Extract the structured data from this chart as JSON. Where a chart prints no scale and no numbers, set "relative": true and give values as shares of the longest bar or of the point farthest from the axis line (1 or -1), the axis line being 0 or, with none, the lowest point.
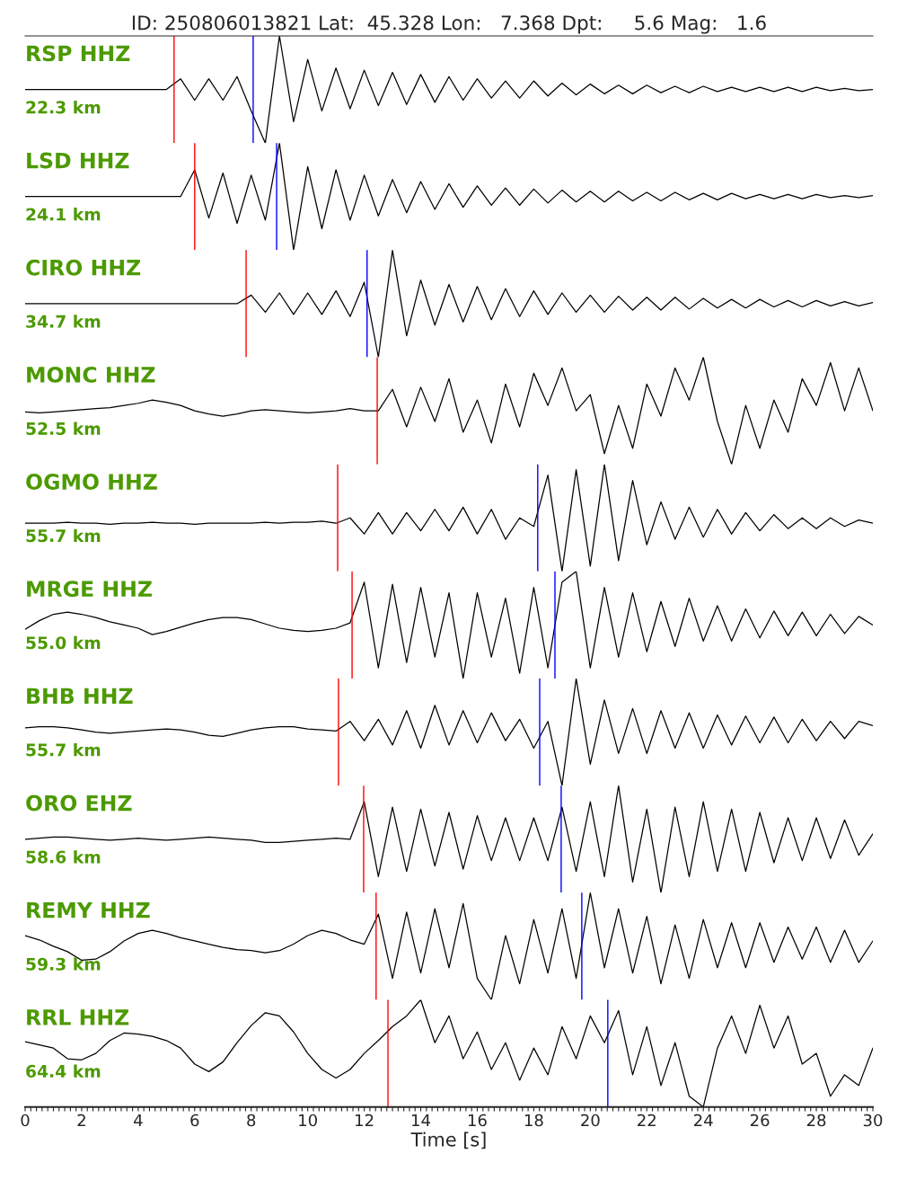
{
  "chart_data": [
    {
      "type": "line",
      "title": "RSP HHZ",
      "subtitle": "22.3 km",
      "annotations": [
        "ID: 250806013821 Lat:  45.328 Lon:   7.368 Dpt:     5.6 Mag:   1.6"
      ],
      "relative": true,
      "xlim": [
        0,
        30
      ],
      "tick_labels": false,
      "x": [
        0,
        0.5,
        1,
        1.5,
        2,
        2.5,
        3,
        3.5,
        4,
        4.5,
        5,
        5.5,
        6,
        6.5,
        7,
        7.5,
        8,
        8.5,
        9,
        9.5,
        10,
        10.5,
        11,
        11.5,
        12,
        12.5,
        13,
        13.5,
        14,
        14.5,
        15,
        15.5,
        16,
        16.5,
        17,
        17.5,
        18,
        18.5,
        19,
        19.5,
        20,
        20.5,
        21,
        21.5,
        22,
        22.5,
        23,
        23.5,
        24,
        24.5,
        25,
        25.5,
        26,
        26.5,
        27,
        27.5,
        28,
        28.5,
        29,
        29.5,
        30
      ],
      "series": [
        {
          "color": "#000000",
          "values": [
            0.5,
            0.5,
            0.5,
            0.5,
            0.5,
            0.5,
            0.5,
            0.5,
            0.5,
            0.5,
            0.5,
            0.6,
            0.4,
            0.6,
            0.4,
            0.62,
            0.3,
            0,
            1,
            0.2,
            0.78,
            0.3,
            0.7,
            0.32,
            0.68,
            0.35,
            0.66,
            0.36,
            0.64,
            0.38,
            0.62,
            0.4,
            0.6,
            0.42,
            0.58,
            0.42,
            0.58,
            0.44,
            0.56,
            0.45,
            0.55,
            0.46,
            0.54,
            0.46,
            0.54,
            0.47,
            0.53,
            0.47,
            0.53,
            0.48,
            0.52,
            0.48,
            0.52,
            0.48,
            0.52,
            0.48,
            0.52,
            0.49,
            0.51,
            0.49,
            0.5
          ]
        }
      ],
      "ref_lines": [
        {
          "axis": "x",
          "value": 5.27,
          "color": "#ff0000"
        },
        {
          "axis": "x",
          "value": 8.07,
          "color": "#0000ff"
        }
      ]
    },
    {
      "type": "line",
      "title": "LSD HHZ",
      "subtitle": "24.1 km",
      "relative": true,
      "xlim": [
        0,
        30
      ],
      "tick_labels": false,
      "x": [
        0,
        0.5,
        1,
        1.5,
        2,
        2.5,
        3,
        3.5,
        4,
        4.5,
        5,
        5.5,
        6,
        6.5,
        7,
        7.5,
        8,
        8.5,
        9,
        9.5,
        10,
        10.5,
        11,
        11.5,
        12,
        12.5,
        13,
        13.5,
        14,
        14.5,
        15,
        15.5,
        16,
        16.5,
        17,
        17.5,
        18,
        18.5,
        19,
        19.5,
        20,
        20.5,
        21,
        21.5,
        22,
        22.5,
        23,
        23.5,
        24,
        24.5,
        25,
        25.5,
        26,
        26.5,
        27,
        27.5,
        28,
        28.5,
        29,
        29.5,
        30
      ],
      "series": [
        {
          "color": "#000000",
          "values": [
            0.5,
            0.5,
            0.5,
            0.5,
            0.5,
            0.5,
            0.5,
            0.5,
            0.5,
            0.5,
            0.5,
            0.5,
            0.75,
            0.3,
            0.72,
            0.25,
            0.7,
            0.28,
            1,
            0,
            0.78,
            0.2,
            0.75,
            0.28,
            0.7,
            0.32,
            0.66,
            0.35,
            0.64,
            0.38,
            0.62,
            0.4,
            0.6,
            0.42,
            0.58,
            0.42,
            0.57,
            0.44,
            0.56,
            0.45,
            0.55,
            0.45,
            0.55,
            0.46,
            0.54,
            0.46,
            0.54,
            0.47,
            0.53,
            0.47,
            0.53,
            0.48,
            0.52,
            0.48,
            0.52,
            0.48,
            0.52,
            0.49,
            0.51,
            0.49,
            0.51
          ]
        }
      ],
      "ref_lines": [
        {
          "axis": "x",
          "value": 6.0,
          "color": "#ff0000"
        },
        {
          "axis": "x",
          "value": 8.9,
          "color": "#0000ff"
        }
      ]
    },
    {
      "type": "line",
      "title": "CIRO HHZ",
      "subtitle": "34.7 km",
      "relative": true,
      "xlim": [
        0,
        30
      ],
      "tick_labels": false,
      "x": [
        0,
        0.5,
        1,
        1.5,
        2,
        2.5,
        3,
        3.5,
        4,
        4.5,
        5,
        5.5,
        6,
        6.5,
        7,
        7.5,
        8,
        8.5,
        9,
        9.5,
        10,
        10.5,
        11,
        11.5,
        12,
        12.5,
        13,
        13.5,
        14,
        14.5,
        15,
        15.5,
        16,
        16.5,
        17,
        17.5,
        18,
        18.5,
        19,
        19.5,
        20,
        20.5,
        21,
        21.5,
        22,
        22.5,
        23,
        23.5,
        24,
        24.5,
        25,
        25.5,
        26,
        26.5,
        27,
        27.5,
        28,
        28.5,
        29,
        29.5,
        30
      ],
      "series": [
        {
          "color": "#000000",
          "values": [
            0.5,
            0.5,
            0.5,
            0.5,
            0.5,
            0.5,
            0.5,
            0.5,
            0.5,
            0.5,
            0.5,
            0.5,
            0.5,
            0.5,
            0.5,
            0.5,
            0.58,
            0.42,
            0.6,
            0.4,
            0.6,
            0.4,
            0.62,
            0.38,
            0.7,
            0,
            1,
            0.2,
            0.72,
            0.3,
            0.68,
            0.33,
            0.66,
            0.35,
            0.64,
            0.38,
            0.62,
            0.4,
            0.6,
            0.42,
            0.58,
            0.42,
            0.57,
            0.44,
            0.56,
            0.44,
            0.56,
            0.45,
            0.55,
            0.46,
            0.54,
            0.46,
            0.54,
            0.47,
            0.53,
            0.47,
            0.53,
            0.48,
            0.52,
            0.48,
            0.51
          ]
        }
      ],
      "ref_lines": [
        {
          "axis": "x",
          "value": 7.82,
          "color": "#ff0000"
        },
        {
          "axis": "x",
          "value": 12.1,
          "color": "#0000ff"
        }
      ]
    },
    {
      "type": "line",
      "title": "MONC HHZ",
      "subtitle": "52.5 km",
      "relative": true,
      "xlim": [
        0,
        30
      ],
      "tick_labels": false,
      "x": [
        0,
        0.5,
        1,
        1.5,
        2,
        2.5,
        3,
        3.5,
        4,
        4.5,
        5,
        5.5,
        6,
        6.5,
        7,
        7.5,
        8,
        8.5,
        9,
        9.5,
        10,
        10.5,
        11,
        11.5,
        12,
        12.5,
        13,
        13.5,
        14,
        14.5,
        15,
        15.5,
        16,
        16.5,
        17,
        17.5,
        18,
        18.5,
        19,
        19.5,
        20,
        20.5,
        21,
        21.5,
        22,
        22.5,
        23,
        23.5,
        24,
        24.5,
        25,
        25.5,
        26,
        26.5,
        27,
        27.5,
        28,
        28.5,
        29,
        29.5,
        30
      ],
      "series": [
        {
          "color": "#000000",
          "values": [
            0.49,
            0.48,
            0.49,
            0.5,
            0.51,
            0.52,
            0.53,
            0.55,
            0.57,
            0.6,
            0.58,
            0.55,
            0.5,
            0.47,
            0.45,
            0.47,
            0.5,
            0.51,
            0.5,
            0.49,
            0.48,
            0.49,
            0.5,
            0.52,
            0.5,
            0.5,
            0.7,
            0.35,
            0.72,
            0.4,
            0.8,
            0.3,
            0.6,
            0.2,
            0.75,
            0.35,
            0.85,
            0.55,
            0.9,
            0.5,
            0.65,
            0.1,
            0.55,
            0.15,
            0.75,
            0.45,
            0.9,
            0.6,
            1,
            0.4,
            0,
            0.55,
            0.15,
            0.6,
            0.3,
            0.8,
            0.55,
            0.95,
            0.5,
            0.9,
            0.5
          ]
        }
      ],
      "ref_lines": [
        {
          "axis": "x",
          "value": 12.46,
          "color": "#ff0000"
        }
      ]
    },
    {
      "type": "line",
      "title": "OGMO HHZ",
      "subtitle": "55.7 km",
      "relative": true,
      "xlim": [
        0,
        30
      ],
      "tick_labels": false,
      "x": [
        0,
        0.5,
        1,
        1.5,
        2,
        2.5,
        3,
        3.5,
        4,
        4.5,
        5,
        5.5,
        6,
        6.5,
        7,
        7.5,
        8,
        8.5,
        9,
        9.5,
        10,
        10.5,
        11,
        11.5,
        12,
        12.5,
        13,
        13.5,
        14,
        14.5,
        15,
        15.5,
        16,
        16.5,
        17,
        17.5,
        18,
        18.5,
        19,
        19.5,
        20,
        20.5,
        21,
        21.5,
        22,
        22.5,
        23,
        23.5,
        24,
        24.5,
        25,
        25.5,
        26,
        26.5,
        27,
        27.5,
        28,
        28.5,
        29,
        29.5,
        30
      ],
      "series": [
        {
          "color": "#000000",
          "values": [
            0.45,
            0.45,
            0.45,
            0.46,
            0.45,
            0.45,
            0.44,
            0.45,
            0.45,
            0.46,
            0.45,
            0.45,
            0.44,
            0.45,
            0.45,
            0.45,
            0.45,
            0.46,
            0.45,
            0.46,
            0.46,
            0.47,
            0.45,
            0.5,
            0.35,
            0.55,
            0.35,
            0.55,
            0.38,
            0.58,
            0.38,
            0.6,
            0.35,
            0.58,
            0.3,
            0.5,
            0.42,
            0.9,
            0,
            0.95,
            0.05,
            1,
            0.1,
            0.85,
            0.25,
            0.65,
            0.3,
            0.6,
            0.32,
            0.58,
            0.35,
            0.55,
            0.38,
            0.53,
            0.4,
            0.5,
            0.4,
            0.5,
            0.42,
            0.48,
            0.45
          ]
        }
      ],
      "ref_lines": [
        {
          "axis": "x",
          "value": 11.06,
          "color": "#ff0000"
        },
        {
          "axis": "x",
          "value": 18.14,
          "color": "#0000ff"
        }
      ]
    },
    {
      "type": "line",
      "title": "MRGE HHZ",
      "subtitle": "55.0 km",
      "relative": true,
      "xlim": [
        0,
        30
      ],
      "tick_labels": false,
      "x": [
        0,
        0.5,
        1,
        1.5,
        2,
        2.5,
        3,
        3.5,
        4,
        4.5,
        5,
        5.5,
        6,
        6.5,
        7,
        7.5,
        8,
        8.5,
        9,
        9.5,
        10,
        10.5,
        11,
        11.5,
        12,
        12.5,
        13,
        13.5,
        14,
        14.5,
        15,
        15.5,
        16,
        16.5,
        17,
        17.5,
        18,
        18.5,
        19,
        19.5,
        20,
        20.5,
        21,
        21.5,
        22,
        22.5,
        23,
        23.5,
        24,
        24.5,
        25,
        25.5,
        26,
        26.5,
        27,
        27.5,
        28,
        28.5,
        29,
        29.5,
        30
      ],
      "series": [
        {
          "color": "#000000",
          "values": [
            0.46,
            0.54,
            0.6,
            0.62,
            0.6,
            0.57,
            0.53,
            0.5,
            0.47,
            0.41,
            0.44,
            0.48,
            0.52,
            0.55,
            0.57,
            0.57,
            0.55,
            0.51,
            0.47,
            0.45,
            0.44,
            0.45,
            0.47,
            0.52,
            0.9,
            0.1,
            0.88,
            0.15,
            0.85,
            0.2,
            0.8,
            0,
            0.8,
            0.2,
            0.75,
            0.05,
            0.85,
            0.1,
            0.9,
            1,
            0.1,
            0.85,
            0.2,
            0.8,
            0.25,
            0.72,
            0.3,
            0.75,
            0.35,
            0.68,
            0.35,
            0.65,
            0.38,
            0.63,
            0.4,
            0.62,
            0.4,
            0.6,
            0.42,
            0.58,
            0.5
          ]
        }
      ],
      "ref_lines": [
        {
          "axis": "x",
          "value": 11.57,
          "color": "#ff0000"
        },
        {
          "axis": "x",
          "value": 18.75,
          "color": "#0000ff"
        }
      ]
    },
    {
      "type": "line",
      "title": "BHB HHZ",
      "subtitle": "55.7 km",
      "relative": true,
      "xlim": [
        0,
        30
      ],
      "tick_labels": false,
      "x": [
        0,
        0.5,
        1,
        1.5,
        2,
        2.5,
        3,
        3.5,
        4,
        4.5,
        5,
        5.5,
        6,
        6.5,
        7,
        7.5,
        8,
        8.5,
        9,
        9.5,
        10,
        10.5,
        11,
        11.5,
        12,
        12.5,
        13,
        13.5,
        14,
        14.5,
        15,
        15.5,
        16,
        16.5,
        17,
        17.5,
        18,
        18.5,
        19,
        19.5,
        20,
        20.5,
        21,
        21.5,
        22,
        22.5,
        23,
        23.5,
        24,
        24.5,
        25,
        25.5,
        26,
        26.5,
        27,
        27.5,
        28,
        28.5,
        29,
        29.5,
        30
      ],
      "series": [
        {
          "color": "#000000",
          "values": [
            0.54,
            0.55,
            0.55,
            0.54,
            0.52,
            0.5,
            0.49,
            0.5,
            0.51,
            0.52,
            0.53,
            0.52,
            0.5,
            0.47,
            0.46,
            0.49,
            0.52,
            0.54,
            0.55,
            0.55,
            0.53,
            0.52,
            0.51,
            0.6,
            0.42,
            0.62,
            0.38,
            0.7,
            0.35,
            0.75,
            0.38,
            0.7,
            0.4,
            0.68,
            0.42,
            0.62,
            0.35,
            0.6,
            0,
            1,
            0.2,
            0.8,
            0.3,
            0.72,
            0.3,
            0.7,
            0.35,
            0.68,
            0.35,
            0.66,
            0.38,
            0.65,
            0.4,
            0.64,
            0.4,
            0.62,
            0.42,
            0.6,
            0.44,
            0.6,
            0.56
          ]
        }
      ],
      "ref_lines": [
        {
          "axis": "x",
          "value": 11.09,
          "color": "#ff0000"
        },
        {
          "axis": "x",
          "value": 18.21,
          "color": "#0000ff"
        }
      ]
    },
    {
      "type": "line",
      "title": "ORO EHZ",
      "subtitle": "58.6 km",
      "relative": true,
      "xlim": [
        0,
        30
      ],
      "tick_labels": false,
      "x": [
        0,
        0.5,
        1,
        1.5,
        2,
        2.5,
        3,
        3.5,
        4,
        4.5,
        5,
        5.5,
        6,
        6.5,
        7,
        7.5,
        8,
        8.5,
        9,
        9.5,
        10,
        10.5,
        11,
        11.5,
        12,
        12.5,
        13,
        13.5,
        14,
        14.5,
        15,
        15.5,
        16,
        16.5,
        17,
        17.5,
        18,
        18.5,
        19,
        19.5,
        20,
        20.5,
        21,
        21.5,
        22,
        22.5,
        23,
        23.5,
        24,
        24.5,
        25,
        25.5,
        26,
        26.5,
        27,
        27.5,
        28,
        28.5,
        29,
        29.5,
        30
      ],
      "series": [
        {
          "color": "#000000",
          "values": [
            0.5,
            0.51,
            0.52,
            0.52,
            0.51,
            0.5,
            0.49,
            0.5,
            0.51,
            0.5,
            0.49,
            0.5,
            0.51,
            0.52,
            0.51,
            0.5,
            0.49,
            0.47,
            0.47,
            0.48,
            0.49,
            0.5,
            0.51,
            0.5,
            0.85,
            0.15,
            0.8,
            0.2,
            0.78,
            0.25,
            0.75,
            0.22,
            0.72,
            0.3,
            0.7,
            0.3,
            0.7,
            0.3,
            0.8,
            0.2,
            0.85,
            0.15,
            1,
            0.1,
            0.78,
            0,
            0.8,
            0.15,
            0.85,
            0.2,
            0.78,
            0.2,
            0.75,
            0.28,
            0.7,
            0.3,
            0.7,
            0.32,
            0.68,
            0.35,
            0.55
          ]
        }
      ],
      "ref_lines": [
        {
          "axis": "x",
          "value": 11.98,
          "color": "#ff0000"
        },
        {
          "axis": "x",
          "value": 18.97,
          "color": "#0000ff"
        }
      ]
    },
    {
      "type": "line",
      "title": "REMY HHZ",
      "subtitle": "59.3 km",
      "relative": true,
      "xlim": [
        0,
        30
      ],
      "tick_labels": false,
      "x": [
        0,
        0.5,
        1,
        1.5,
        2,
        2.5,
        3,
        3.5,
        4,
        4.5,
        5,
        5.5,
        6,
        6.5,
        7,
        7.5,
        8,
        8.5,
        9,
        9.5,
        10,
        10.5,
        11,
        11.5,
        12,
        12.5,
        13,
        13.5,
        14,
        14.5,
        15,
        15.5,
        16,
        16.5,
        17,
        17.5,
        18,
        18.5,
        19,
        19.5,
        20,
        20.5,
        21,
        21.5,
        22,
        22.5,
        23,
        23.5,
        24,
        24.5,
        25,
        25.5,
        26,
        26.5,
        27,
        27.5,
        28,
        28.5,
        29,
        29.5,
        30
      ],
      "series": [
        {
          "color": "#000000",
          "values": [
            0.6,
            0.56,
            0.5,
            0.45,
            0.37,
            0.38,
            0.45,
            0.55,
            0.62,
            0.65,
            0.62,
            0.58,
            0.55,
            0.52,
            0.49,
            0.47,
            0.46,
            0.44,
            0.46,
            0.52,
            0.6,
            0.65,
            0.62,
            0.56,
            0.52,
            0.8,
            0.2,
            0.82,
            0.25,
            0.85,
            0.3,
            0.9,
            0.2,
            0,
            0.6,
            0.15,
            0.75,
            0.25,
            0.85,
            0.2,
            1,
            0.3,
            0.85,
            0.25,
            0.78,
            0.15,
            0.7,
            0.2,
            0.75,
            0.3,
            0.72,
            0.3,
            0.72,
            0.35,
            0.68,
            0.38,
            0.68,
            0.35,
            0.65,
            0.35,
            0.55
          ]
        }
      ],
      "ref_lines": [
        {
          "axis": "x",
          "value": 12.42,
          "color": "#ff0000"
        },
        {
          "axis": "x",
          "value": 19.7,
          "color": "#0000ff"
        }
      ]
    },
    {
      "type": "line",
      "title": "RRL HHZ",
      "subtitle": "64.4 km",
      "relative": true,
      "xlim": [
        0,
        30
      ],
      "tick_labels": "x",
      "xlabel": "Time [s]",
      "x": [
        0,
        0.5,
        1,
        1.5,
        2,
        2.5,
        3,
        3.5,
        4,
        4.5,
        5,
        5.5,
        6,
        6.5,
        7,
        7.5,
        8,
        8.5,
        9,
        9.5,
        10,
        10.5,
        11,
        11.5,
        12,
        12.5,
        13,
        13.5,
        14,
        14.5,
        15,
        15.5,
        16,
        16.5,
        17,
        17.5,
        18,
        18.5,
        19,
        19.5,
        20,
        20.5,
        21,
        21.5,
        22,
        22.5,
        23,
        23.5,
        24,
        24.5,
        25,
        25.5,
        26,
        26.5,
        27,
        27.5,
        28,
        28.5,
        29,
        29.5,
        30
      ],
      "series": [
        {
          "color": "#000000",
          "values": [
            0.61,
            0.58,
            0.55,
            0.45,
            0.44,
            0.5,
            0.62,
            0.69,
            0.68,
            0.66,
            0.62,
            0.55,
            0.4,
            0.33,
            0.42,
            0.6,
            0.76,
            0.88,
            0.85,
            0.7,
            0.5,
            0.35,
            0.27,
            0.35,
            0.5,
            0.62,
            0.75,
            0.85,
            1,
            0.6,
            0.85,
            0.45,
            0.7,
            0.35,
            0.6,
            0.25,
            0.55,
            0.3,
            0.75,
            0.45,
            0.85,
            0.6,
            0.9,
            0.3,
            0.75,
            0.2,
            0.6,
            0.1,
            0,
            0.55,
            0.85,
            0.5,
            0.95,
            0.55,
            0.85,
            0.4,
            0.5,
            0.1,
            0.3,
            0.2,
            0.55
          ]
        }
      ],
      "ref_lines": [
        {
          "axis": "x",
          "value": 12.84,
          "color": "#ff0000"
        },
        {
          "axis": "x",
          "value": 20.62,
          "color": "#0000ff"
        }
      ],
      "xticks": [
        0,
        2,
        4,
        6,
        8,
        10,
        12,
        14,
        16,
        18,
        20,
        22,
        24,
        26,
        28,
        30,
        {
          "value": 0.2,
          "label": null
        },
        {
          "value": 0.4,
          "label": null
        },
        {
          "value": 0.6,
          "label": null
        },
        {
          "value": 0.8,
          "label": null
        },
        {
          "value": 1,
          "label": null
        },
        {
          "value": 1.2,
          "label": null
        },
        {
          "value": 1.4,
          "label": null
        },
        {
          "value": 1.6,
          "label": null
        },
        {
          "value": 1.8,
          "label": null
        },
        {
          "value": 2.2,
          "label": null
        },
        {
          "value": 2.4,
          "label": null
        },
        {
          "value": 2.6,
          "label": null
        },
        {
          "value": 2.8,
          "label": null
        },
        {
          "value": 3,
          "label": null
        },
        {
          "value": 3.2,
          "label": null
        },
        {
          "value": 3.4,
          "label": null
        },
        {
          "value": 3.6,
          "label": null
        },
        {
          "value": 3.8,
          "label": null
        },
        {
          "value": 4.2,
          "label": null
        },
        {
          "value": 4.4,
          "label": null
        },
        {
          "value": 4.6,
          "label": null
        },
        {
          "value": 4.8,
          "label": null
        },
        {
          "value": 5,
          "label": null
        },
        {
          "value": 5.2,
          "label": null
        },
        {
          "value": 5.4,
          "label": null
        },
        {
          "value": 5.6,
          "label": null
        },
        {
          "value": 5.8,
          "label": null
        },
        {
          "value": 6.2,
          "label": null
        },
        {
          "value": 6.4,
          "label": null
        },
        {
          "value": 6.6,
          "label": null
        },
        {
          "value": 6.8,
          "label": null
        },
        {
          "value": 7,
          "label": null
        },
        {
          "value": 7.2,
          "label": null
        },
        {
          "value": 7.4,
          "label": null
        },
        {
          "value": 7.6,
          "label": null
        },
        {
          "value": 7.8,
          "label": null
        },
        {
          "value": 8.2,
          "label": null
        },
        {
          "value": 8.4,
          "label": null
        },
        {
          "value": 8.6,
          "label": null
        },
        {
          "value": 8.8,
          "label": null
        },
        {
          "value": 9,
          "label": null
        },
        {
          "value": 9.2,
          "label": null
        },
        {
          "value": 9.4,
          "label": null
        },
        {
          "value": 9.6,
          "label": null
        },
        {
          "value": 9.8,
          "label": null
        },
        {
          "value": 10.2,
          "label": null
        },
        {
          "value": 10.4,
          "label": null
        },
        {
          "value": 10.6,
          "label": null
        },
        {
          "value": 10.8,
          "label": null
        },
        {
          "value": 11,
          "label": null
        },
        {
          "value": 11.2,
          "label": null
        },
        {
          "value": 11.4,
          "label": null
        },
        {
          "value": 11.6,
          "label": null
        },
        {
          "value": 11.8,
          "label": null
        },
        {
          "value": 12.2,
          "label": null
        },
        {
          "value": 12.4,
          "label": null
        },
        {
          "value": 12.6,
          "label": null
        },
        {
          "value": 12.8,
          "label": null
        },
        {
          "value": 13,
          "label": null
        },
        {
          "value": 13.2,
          "label": null
        },
        {
          "value": 13.4,
          "label": null
        },
        {
          "value": 13.6,
          "label": null
        },
        {
          "value": 13.8,
          "label": null
        },
        {
          "value": 14.2,
          "label": null
        },
        {
          "value": 14.4,
          "label": null
        },
        {
          "value": 14.6,
          "label": null
        },
        {
          "value": 14.8,
          "label": null
        },
        {
          "value": 15,
          "label": null
        },
        {
          "value": 15.2,
          "label": null
        },
        {
          "value": 15.4,
          "label": null
        },
        {
          "value": 15.6,
          "label": null
        },
        {
          "value": 15.8,
          "label": null
        },
        {
          "value": 16.2,
          "label": null
        },
        {
          "value": 16.4,
          "label": null
        },
        {
          "value": 16.6,
          "label": null
        },
        {
          "value": 16.8,
          "label": null
        },
        {
          "value": 17,
          "label": null
        },
        {
          "value": 17.2,
          "label": null
        },
        {
          "value": 17.4,
          "label": null
        },
        {
          "value": 17.6,
          "label": null
        },
        {
          "value": 17.8,
          "label": null
        },
        {
          "value": 18.2,
          "label": null
        },
        {
          "value": 18.4,
          "label": null
        },
        {
          "value": 18.6,
          "label": null
        },
        {
          "value": 18.8,
          "label": null
        },
        {
          "value": 19,
          "label": null
        },
        {
          "value": 19.2,
          "label": null
        },
        {
          "value": 19.4,
          "label": null
        },
        {
          "value": 19.6,
          "label": null
        },
        {
          "value": 19.8,
          "label": null
        },
        {
          "value": 20.2,
          "label": null
        },
        {
          "value": 20.4,
          "label": null
        },
        {
          "value": 20.6,
          "label": null
        },
        {
          "value": 20.8,
          "label": null
        },
        {
          "value": 21,
          "label": null
        },
        {
          "value": 21.2,
          "label": null
        },
        {
          "value": 21.4,
          "label": null
        },
        {
          "value": 21.6,
          "label": null
        },
        {
          "value": 21.8,
          "label": null
        },
        {
          "value": 22.2,
          "label": null
        },
        {
          "value": 22.4,
          "label": null
        },
        {
          "value": 22.6,
          "label": null
        },
        {
          "value": 22.8,
          "label": null
        },
        {
          "value": 23,
          "label": null
        },
        {
          "value": 23.2,
          "label": null
        },
        {
          "value": 23.4,
          "label": null
        },
        {
          "value": 23.6,
          "label": null
        },
        {
          "value": 23.8,
          "label": null
        },
        {
          "value": 24.2,
          "label": null
        },
        {
          "value": 24.4,
          "label": null
        },
        {
          "value": 24.6,
          "label": null
        },
        {
          "value": 24.8,
          "label": null
        },
        {
          "value": 25,
          "label": null
        },
        {
          "value": 25.2,
          "label": null
        },
        {
          "value": 25.4,
          "label": null
        },
        {
          "value": 25.6,
          "label": null
        },
        {
          "value": 25.8,
          "label": null
        },
        {
          "value": 26.2,
          "label": null
        },
        {
          "value": 26.4,
          "label": null
        },
        {
          "value": 26.6,
          "label": null
        },
        {
          "value": 26.8,
          "label": null
        },
        {
          "value": 27,
          "label": null
        },
        {
          "value": 27.2,
          "label": null
        },
        {
          "value": 27.4,
          "label": null
        },
        {
          "value": 27.6,
          "label": null
        },
        {
          "value": 27.8,
          "label": null
        },
        {
          "value": 28.2,
          "label": null
        },
        {
          "value": 28.4,
          "label": null
        },
        {
          "value": 28.6,
          "label": null
        },
        {
          "value": 28.8,
          "label": null
        },
        {
          "value": 29,
          "label": null
        },
        {
          "value": 29.2,
          "label": null
        },
        {
          "value": 29.4,
          "label": null
        },
        {
          "value": 29.6,
          "label": null
        },
        {
          "value": 29.8,
          "label": null
        }
      ]
    }
  ]
}
